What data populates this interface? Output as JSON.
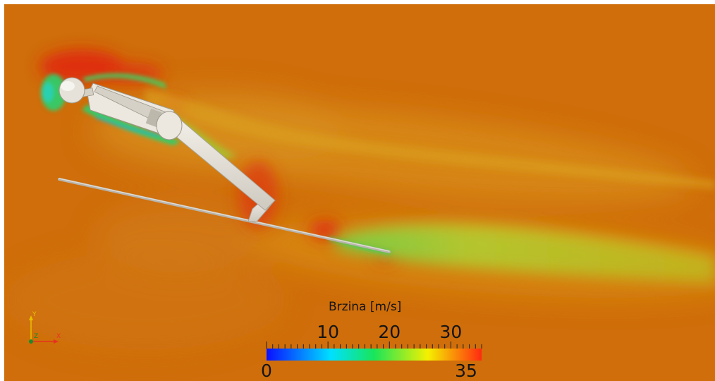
{
  "colorbar": {
    "title": "Brzina [m/s]",
    "min": 0,
    "max": 35,
    "ticks": [
      10,
      20,
      30
    ],
    "min_label": "0",
    "max_label": "35",
    "colormap": [
      "#0a10ff",
      "#00e0ff",
      "#19e55a",
      "#f5f000",
      "#ff2a10"
    ]
  },
  "axes_triad": {
    "x_label": "X",
    "y_label": "Y",
    "z_label": "Z",
    "x_color": "#e83020",
    "y_color": "#e8c000",
    "z_color": "#1a8a2a"
  },
  "field_colors": {
    "background": "#cf6e0a",
    "high_speed": "#e0340e",
    "wake": "#b6c42c",
    "low_speed": "#2ad16e",
    "body": "#ece8e0"
  }
}
